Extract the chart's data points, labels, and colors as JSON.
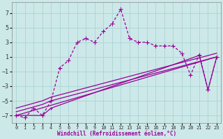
{
  "xlabel": "Windchill (Refroidissement éolien,°C)",
  "bg_color": "#cde8e8",
  "line_color": "#990099",
  "grid_color": "#aad4d4",
  "ylim": [
    -8,
    8.5
  ],
  "xlim": [
    -0.5,
    23.5
  ],
  "yticks": [
    -7,
    -5,
    -3,
    -1,
    1,
    3,
    5,
    7
  ],
  "xticks": [
    0,
    1,
    2,
    3,
    4,
    5,
    6,
    7,
    8,
    9,
    10,
    11,
    12,
    13,
    14,
    15,
    16,
    17,
    18,
    19,
    20,
    21,
    22,
    23
  ],
  "series1_x": [
    0,
    1,
    2,
    3,
    4,
    5,
    6,
    7,
    8,
    9,
    10,
    11,
    12,
    13,
    14,
    15,
    16,
    17,
    18,
    19,
    20,
    21,
    22,
    23
  ],
  "series1_y": [
    -7.0,
    -7.3,
    -6.0,
    -7.0,
    -5.0,
    -0.5,
    0.5,
    3.0,
    3.5,
    3.0,
    4.5,
    5.5,
    7.5,
    3.5,
    3.0,
    3.0,
    2.5,
    2.5,
    2.5,
    1.5,
    -1.5,
    1.3,
    -3.5,
    1.0
  ],
  "series2_x": [
    0,
    3,
    4,
    21,
    22,
    23
  ],
  "series2_y": [
    -7.0,
    -7.0,
    -6.0,
    1.2,
    -3.5,
    1.0
  ],
  "series3_x": [
    0,
    23
  ],
  "series3_y": [
    -7.0,
    1.0
  ],
  "series4_x": [
    0,
    3,
    4,
    23
  ],
  "series4_y": [
    -6.5,
    -5.5,
    -5.0,
    1.0
  ],
  "series5_x": [
    0,
    3,
    4,
    23
  ],
  "series5_y": [
    -6.0,
    -5.0,
    -4.5,
    1.5
  ]
}
